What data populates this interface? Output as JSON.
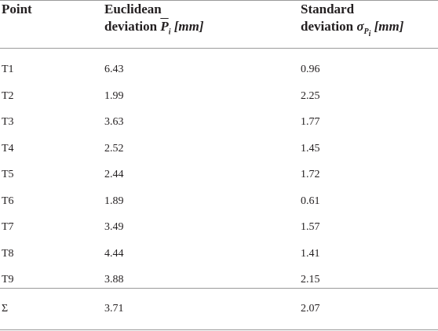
{
  "table": {
    "header": {
      "point": "Point",
      "euclidean": {
        "line1": "Euclidean",
        "line2": "deviation",
        "symbol": "P",
        "sub": "i",
        "unit": "[mm]"
      },
      "standard": {
        "line1": "Standard",
        "line2": "deviation",
        "symbol": "σ",
        "sub_symbol": "P",
        "sub": "i",
        "unit": "[mm]"
      }
    },
    "rows": [
      [
        "T1",
        "6.43",
        "0.96"
      ],
      [
        "T2",
        "1.99",
        "2.25"
      ],
      [
        "T3",
        "3.63",
        "1.77"
      ],
      [
        "T4",
        "2.52",
        "1.45"
      ],
      [
        "T5",
        "2.44",
        "1.72"
      ],
      [
        "T6",
        "1.89",
        "0.61"
      ],
      [
        "T7",
        "3.49",
        "1.57"
      ],
      [
        "T8",
        "4.44",
        "1.41"
      ],
      [
        "T9",
        "3.88",
        "2.15"
      ]
    ],
    "footer": [
      "Σ",
      "3.71",
      "2.07"
    ]
  }
}
